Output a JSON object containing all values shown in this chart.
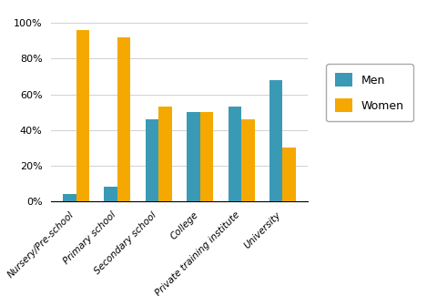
{
  "categories": [
    "Nursery/Pre-school",
    "Primary school",
    "Secondary school",
    "College",
    "Private training institute",
    "University"
  ],
  "men": [
    4,
    8,
    46,
    50,
    53,
    68
  ],
  "women": [
    96,
    92,
    53,
    50,
    46,
    30
  ],
  "men_color": "#3a9ab5",
  "women_color": "#f5a800",
  "ylabel_ticks": [
    "0%",
    "20%",
    "40%",
    "60%",
    "80%",
    "100%"
  ],
  "ytick_vals": [
    0,
    20,
    40,
    60,
    80,
    100
  ],
  "ylim": [
    0,
    103
  ],
  "legend_labels": [
    "Men",
    "Women"
  ],
  "bar_width": 0.32,
  "background_color": "#ffffff",
  "figsize": [
    4.69,
    3.25
  ],
  "dpi": 100
}
